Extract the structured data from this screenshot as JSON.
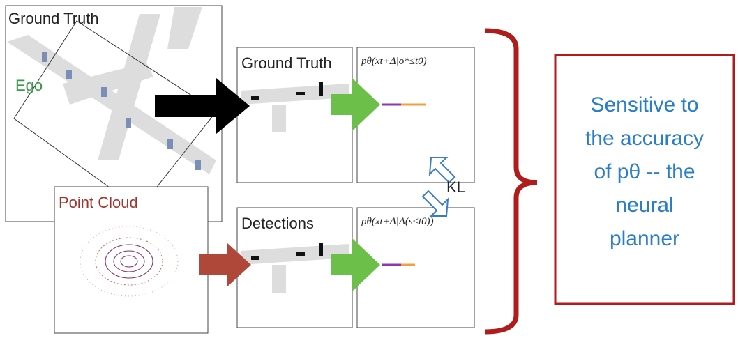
{
  "map_panel": {
    "title": "Ground Truth",
    "ego_label": "Ego"
  },
  "point_cloud_panel": {
    "title": "Point Cloud"
  },
  "ground_truth_panel": {
    "title": "Ground Truth",
    "formula": "pθ(xt+Δ|o*≤t0)"
  },
  "detections_panel": {
    "title": "Detections",
    "formula": "pθ(xt+Δ|A(s≤t0))"
  },
  "kl_label": "KL",
  "callout": {
    "lines": [
      "Sensitive to",
      "the accuracy",
      "of pθ -- the",
      "neural",
      "planner"
    ]
  }
}
